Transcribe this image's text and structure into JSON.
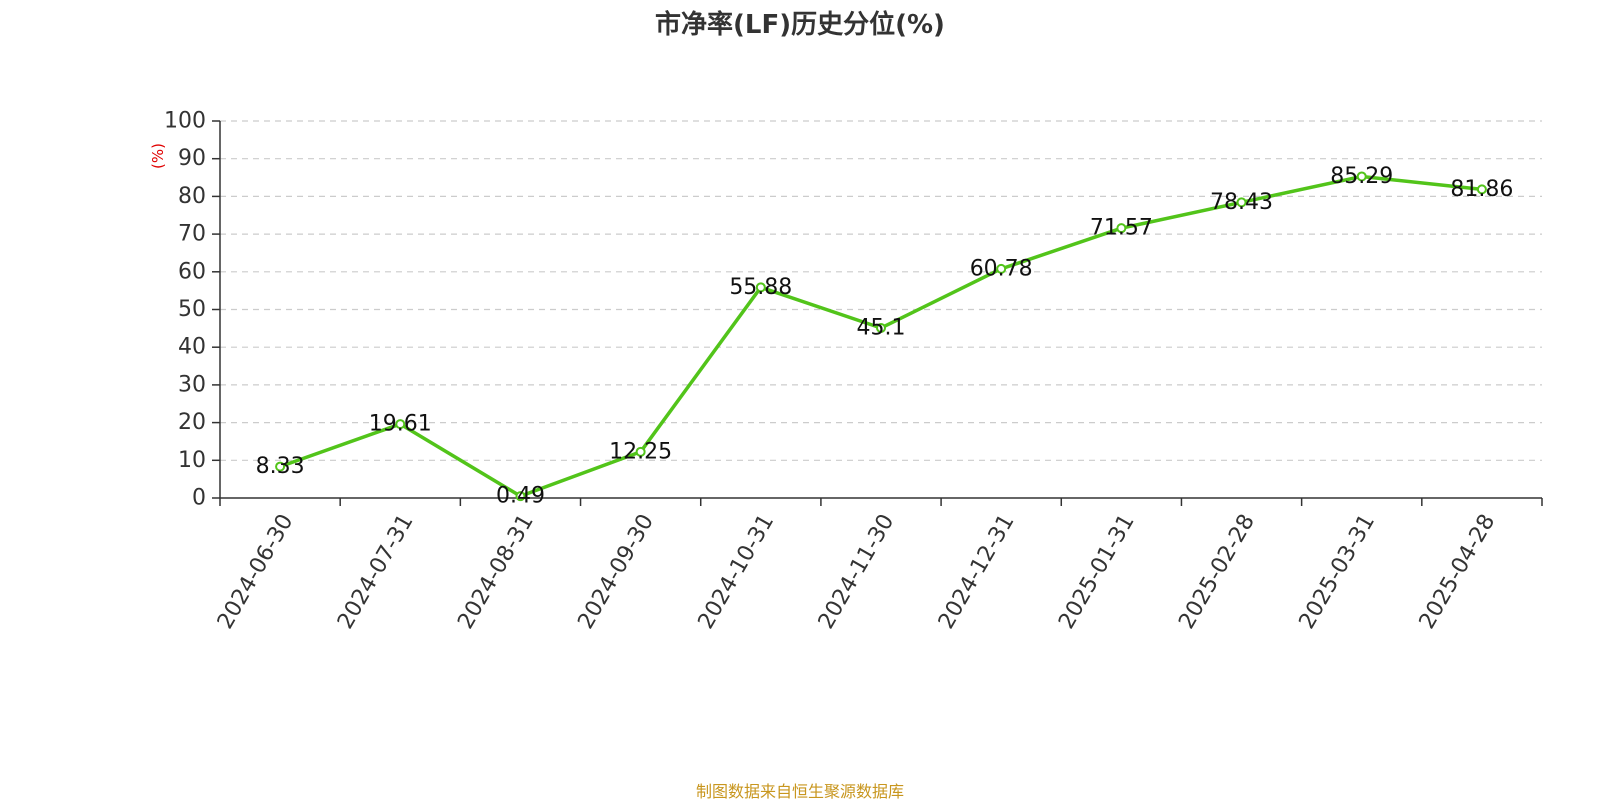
{
  "chart_data": {
    "type": "line",
    "title": "市净率(LF)历史分位(%)",
    "ylabel": "(%)",
    "xlabel": "",
    "ylim": [
      0,
      100
    ],
    "yticks": [
      "0",
      "10",
      "20",
      "30",
      "40",
      "50",
      "60",
      "70",
      "80",
      "90",
      "100"
    ],
    "categories": [
      "2024-06-30",
      "2024-07-31",
      "2024-08-31",
      "2024-09-30",
      "2024-10-31",
      "2024-11-30",
      "2024-12-31",
      "2025-01-31",
      "2025-02-28",
      "2025-03-31",
      "2025-04-28"
    ],
    "series": [
      {
        "values": [
          8.33,
          19.61,
          0.49,
          12.25,
          55.88,
          45.1,
          60.78,
          71.57,
          78.43,
          85.29,
          81.86
        ],
        "labels": [
          "8.33",
          "19.61",
          "0.49",
          "12.25",
          "55.88",
          "45.1",
          "60.78",
          "71.57",
          "78.43",
          "85.29",
          "81.86"
        ],
        "color": "#52c41a"
      }
    ],
    "grid": true,
    "legend": "none"
  },
  "footer": {
    "source": "制图数据来自恒生聚源数据库"
  },
  "colors": {
    "title": "#333333",
    "axis": "#333333",
    "grid": "#cccccc",
    "ylabel": "#e00000",
    "source": "#c8961e",
    "line": "#52c41a"
  }
}
